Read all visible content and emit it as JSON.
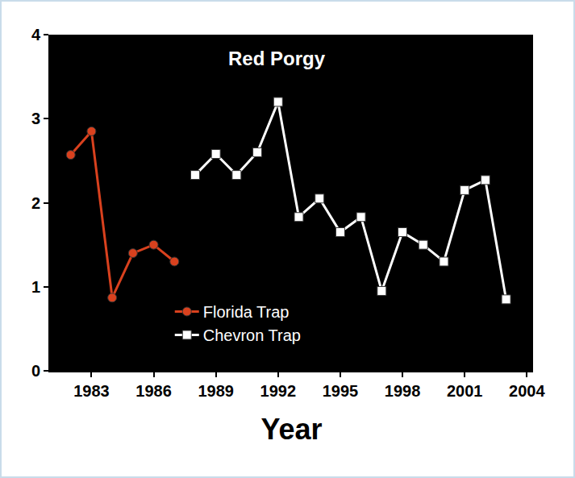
{
  "chart_data": {
    "type": "line",
    "title": "Red Porgy",
    "x_label": "Year",
    "series": [
      {
        "name": "Florida Trap",
        "color": "#d9411e",
        "marker": "circle",
        "x": [
          1982,
          1983,
          1984,
          1985,
          1986,
          1987
        ],
        "values": [
          2.57,
          2.85,
          0.87,
          1.4,
          1.5,
          1.3
        ]
      },
      {
        "name": "Chevron Trap",
        "color": "#ffffff",
        "marker": "square",
        "x": [
          1988,
          1989,
          1990,
          1991,
          1992,
          1993,
          1994,
          1995,
          1996,
          1997,
          1998,
          1999,
          2000,
          2001,
          2002,
          2003
        ],
        "values": [
          2.33,
          2.58,
          2.33,
          2.6,
          3.2,
          1.83,
          2.05,
          1.65,
          1.83,
          0.95,
          1.65,
          1.5,
          1.3,
          2.15,
          2.27,
          0.85
        ]
      }
    ],
    "xlim": [
      1981,
      2004.3
    ],
    "xticks": [
      1983,
      1986,
      1989,
      1992,
      1995,
      1998,
      2001,
      2004
    ],
    "ylim": [
      0,
      4
    ],
    "yticks": [
      0,
      1,
      2,
      3,
      4
    ],
    "grid": false,
    "legend": "bottom"
  }
}
